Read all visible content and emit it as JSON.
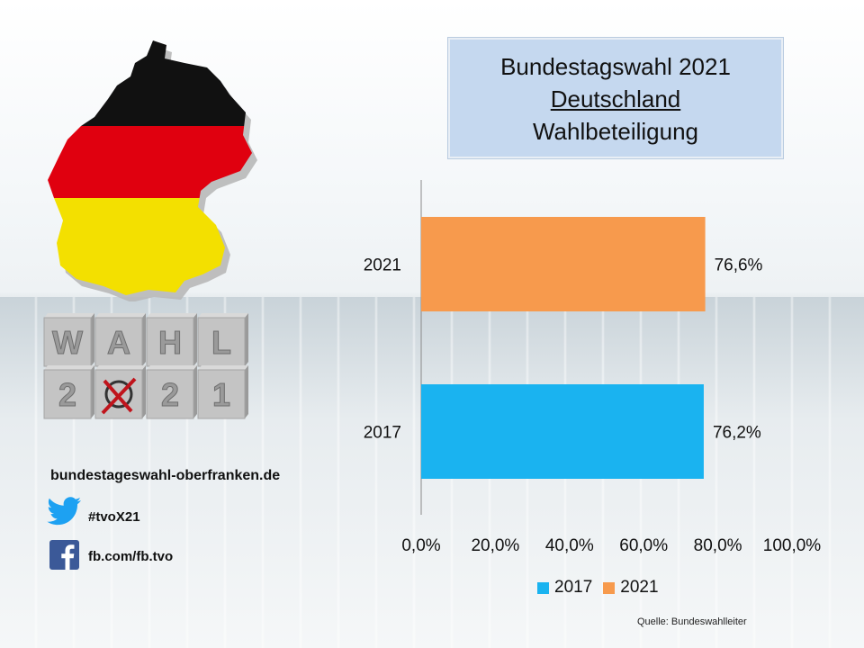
{
  "title": {
    "line1": "Bundestagswahl 2021",
    "line2": "Deutschland",
    "line3": "Wahlbeteiligung"
  },
  "sidebar": {
    "website": "bundestageswahl-oberfranken.de",
    "twitter": "#tvoX21",
    "facebook": "fb.com/fb.tvo",
    "cubes_top": [
      "W",
      "A",
      "H",
      "L"
    ],
    "cubes_bottom": [
      "2",
      "",
      "2",
      "1"
    ]
  },
  "source": "Quelle: Bundeswahlleiter",
  "colors": {
    "series_2017": "#1ab3f0",
    "series_2021": "#f79a4d",
    "title_box": "#c5d8ef"
  },
  "chart_data": {
    "type": "bar",
    "orientation": "horizontal",
    "categories": [
      "2021",
      "2017"
    ],
    "series": [
      {
        "name": "2017",
        "values": [
          null,
          76.2
        ]
      },
      {
        "name": "2021",
        "values": [
          76.6,
          null
        ]
      }
    ],
    "value_labels": [
      "76,6%",
      "76,2%"
    ],
    "xlim": [
      0,
      100
    ],
    "x_ticks": [
      "0,0%",
      "20,0%",
      "40,0%",
      "60,0%",
      "80,0%",
      "100,0%"
    ],
    "legend_position": "bottom",
    "grid": false
  }
}
